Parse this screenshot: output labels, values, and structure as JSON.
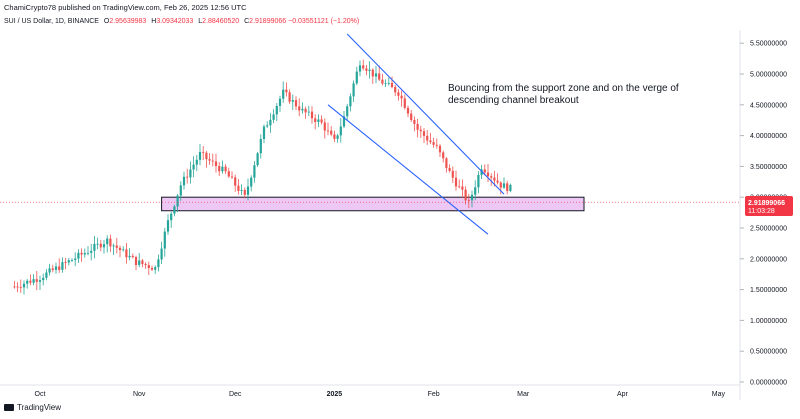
{
  "header": {
    "publisher": "ChamiCrypto78 published on TradingView.com, Feb 26, 2025 12:56 UTC"
  },
  "ohlc": {
    "symbol": "SUI / US Dollar, 1D, BINANCE",
    "open_label": "O",
    "open": "2.95639983",
    "high_label": "H",
    "high": "3.09342033",
    "low_label": "L",
    "low": "2.88460520",
    "close_label": "C",
    "close": "2.91899066",
    "change": "−0.03551121 (−1.20%)"
  },
  "footer": {
    "brand": "TradingView"
  },
  "price_tag": {
    "price": "2.91899066",
    "countdown": "11:03:28"
  },
  "colors": {
    "up": "#26a69a",
    "down": "#ef5350",
    "channel": "#2962ff",
    "zone_fill": "#e7b6f0",
    "zone_stroke": "#131722",
    "price_tag": "#f23645"
  },
  "chart_data": {
    "type": "candlestick",
    "title": "SUI / US Dollar, 1D, BINANCE",
    "ylim": [
      0,
      5.8
    ],
    "y_ticks": [
      "0.00000000",
      "0.50000000",
      "1.00000000",
      "1.50000000",
      "2.00000000",
      "2.50000000",
      "3.00000000",
      "3.50000000",
      "4.00000000",
      "4.50000000",
      "5.00000000",
      "5.50000000"
    ],
    "x_ticks": [
      {
        "label": "Oct",
        "date": "2024-10-01"
      },
      {
        "label": "Nov",
        "date": "2024-11-01"
      },
      {
        "label": "Dec",
        "date": "2024-12-01"
      },
      {
        "label": "2025",
        "date": "2025-01-01"
      },
      {
        "label": "Feb",
        "date": "2025-02-01"
      },
      {
        "label": "Mar",
        "date": "2025-03-01"
      },
      {
        "label": "Apr",
        "date": "2025-04-01"
      },
      {
        "label": "May",
        "date": "2025-05-01"
      }
    ],
    "support_zone": {
      "y_low": 2.78,
      "y_high": 3.0,
      "x_start": "2024-11-08",
      "x_end": "2025-03-20"
    },
    "channel": {
      "upper": [
        {
          "date": "2025-01-05",
          "y": 5.65
        },
        {
          "date": "2025-02-23",
          "y": 3.05
        }
      ],
      "lower": [
        {
          "date": "2024-12-30",
          "y": 4.5
        },
        {
          "date": "2025-02-18",
          "y": 2.4
        }
      ]
    },
    "annotation": "Bouncing from the support zone and on the verge of descending channel breakout",
    "last_price": 2.91899066
  }
}
